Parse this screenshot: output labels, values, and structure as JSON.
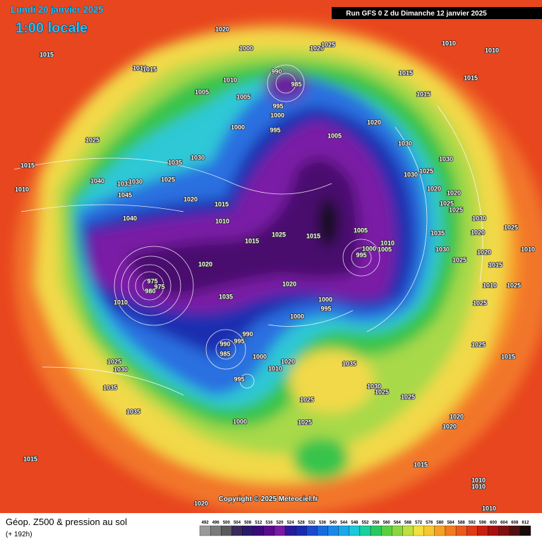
{
  "header": {
    "date": "Lundi 20 janvier 2025",
    "time": "1:00 locale",
    "run": "Run GFS 0 Z du Dimanche 12 janvier 2025"
  },
  "copyright": "Copyright © 2025 Meteociel.fr",
  "footer": {
    "title": "Géop. Z500 & pression au sol",
    "lead": "(+ 192h)"
  },
  "legend": {
    "levels": [
      492,
      496,
      500,
      504,
      508,
      512,
      516,
      520,
      524,
      528,
      532,
      536,
      540,
      544,
      548,
      552,
      556,
      560,
      564,
      568,
      572,
      576,
      580,
      584,
      588,
      592,
      596,
      600,
      604,
      608,
      612
    ]
  },
  "isobar_labels": [
    1020,
    1000,
    1020,
    1025,
    1010,
    1010,
    1015,
    1010,
    1015,
    990,
    985,
    1010,
    1015,
    1015,
    1005,
    1005,
    1015,
    995,
    1000,
    1020,
    1000,
    995,
    1005,
    1025,
    1030,
    1015,
    1035,
    1030,
    1030,
    1025,
    1030,
    1025,
    1010,
    1040,
    1035,
    1030,
    1020,
    1020,
    1045,
    1020,
    1015,
    1025,
    1025,
    1030,
    1040,
    1010,
    1005,
    1025,
    1035,
    1020,
    1025,
    1015,
    1010,
    1015,
    1000,
    1005,
    1030,
    1020,
    1010,
    995,
    1025,
    1015,
    1020,
    975,
    1020,
    1010,
    1025,
    975,
    980,
    1035,
    1000,
    1025,
    1010,
    995,
    1000,
    990,
    995,
    990,
    985,
    1025,
    1000,
    1020,
    1035,
    1025,
    1030,
    1015,
    1010,
    995,
    1035,
    1030,
    1025,
    1025,
    1025,
    1035,
    1020,
    1000,
    1025,
    1020,
    1015,
    1015,
    1010,
    1010,
    1020,
    1010
  ]
}
